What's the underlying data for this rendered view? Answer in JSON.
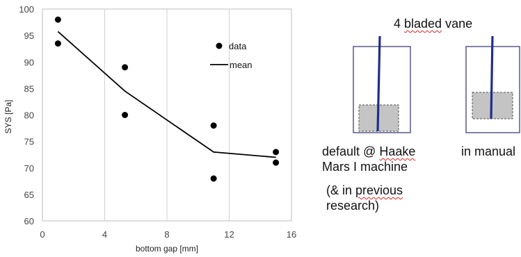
{
  "chart_data": {
    "type": "scatter",
    "xlabel": "bottom gap [mm]",
    "ylabel": "SYS  [Pa]",
    "xlim": [
      0,
      16
    ],
    "ylim": [
      60,
      100
    ],
    "xticks": [
      "0",
      "4",
      "8",
      "12",
      "16"
    ],
    "yticks": [
      "60",
      "65",
      "70",
      "75",
      "80",
      "85",
      "90",
      "95",
      "100"
    ],
    "grid": "vertical",
    "legend": "top-right",
    "series": [
      {
        "name": "data",
        "type": "scatter",
        "color": "#000000",
        "points": [
          [
            1,
            98
          ],
          [
            1,
            93.5
          ],
          [
            5.3,
            89
          ],
          [
            5.3,
            80
          ],
          [
            11,
            78
          ],
          [
            11,
            68
          ],
          [
            15,
            73
          ],
          [
            15,
            71
          ]
        ]
      },
      {
        "name": "mean",
        "type": "line",
        "color": "#000000",
        "points": [
          [
            1,
            95.75
          ],
          [
            5.3,
            84.5
          ],
          [
            11,
            73
          ],
          [
            15,
            72
          ]
        ]
      }
    ]
  },
  "diagram": {
    "title_prefix": "4 ",
    "title_underlined": "bladed",
    "title_suffix": " vane",
    "left_caption_prefix": "default @ ",
    "left_caption_underlined": "Haake",
    "left_caption_line2": "Mars I machine",
    "left_note_prefix": "(& in ",
    "left_note_underlined": "previous",
    "left_note_line2": "research)",
    "right_caption": "in manual",
    "colors": {
      "container_border": "#3d3d7a",
      "shaft": "#1f2d8c",
      "sample_fill": "#c4c4c4",
      "sample_border": "#555555"
    }
  }
}
